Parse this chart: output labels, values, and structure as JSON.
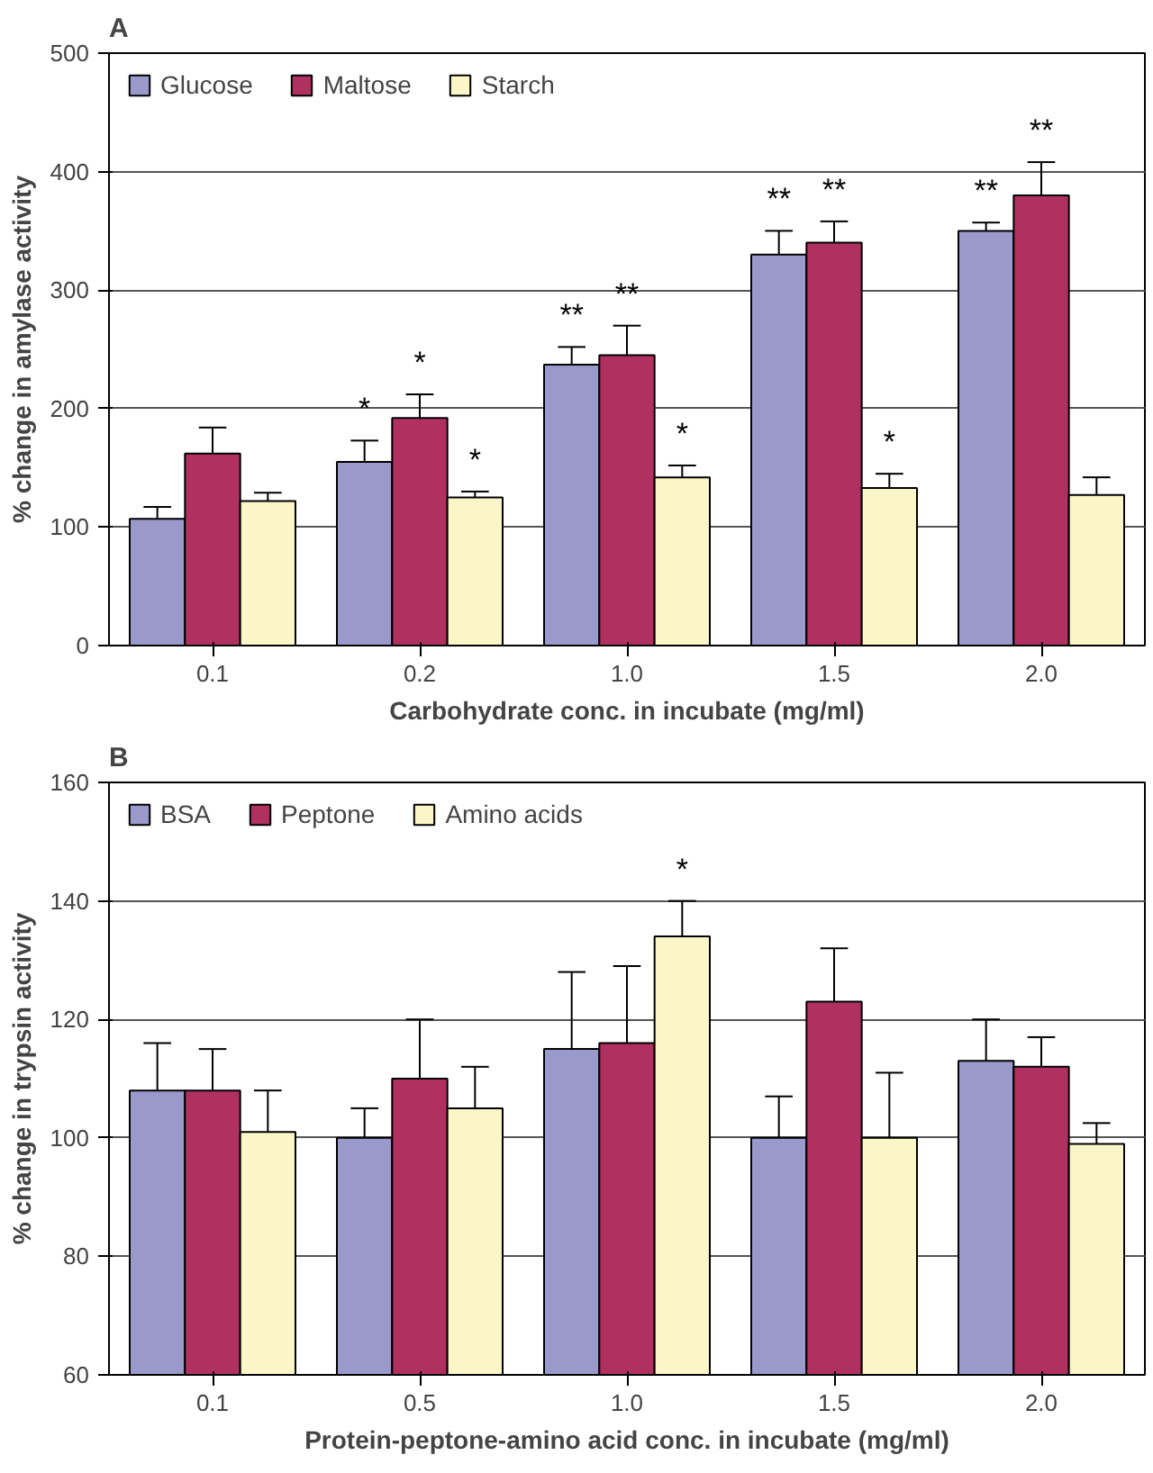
{
  "chart_data": [
    {
      "type": "bar",
      "title": "A",
      "xlabel": "Carbohydrate conc. in incubate (mg/ml)",
      "ylabel": "% change in amylase activity",
      "categories": [
        "0.1",
        "0.2",
        "1.0",
        "1.5",
        "2.0"
      ],
      "series": [
        {
          "name": "Glucose",
          "color": "#9999cc",
          "values": [
            107,
            155,
            237,
            330,
            350
          ],
          "errors": [
            [
              107,
              117
            ],
            [
              155,
              173
            ],
            [
              237,
              252
            ],
            [
              330,
              350
            ],
            [
              350,
              357
            ]
          ],
          "value_labels": [
            null,
            "*",
            "**",
            "**",
            "**"
          ]
        },
        {
          "name": "Maltose",
          "color": "#b03060",
          "values": [
            162,
            192,
            245,
            340,
            380
          ],
          "errors": [
            [
              162,
              184
            ],
            [
              192,
              212
            ],
            [
              245,
              270
            ],
            [
              340,
              358
            ],
            [
              380,
              408
            ]
          ],
          "value_labels": [
            null,
            "*",
            "**",
            "**",
            "**"
          ]
        },
        {
          "name": "Starch",
          "color": "#fbf6c8",
          "values": [
            122,
            125,
            142,
            133,
            127
          ],
          "errors": [
            [
              122,
              129
            ],
            [
              125,
              130
            ],
            [
              142,
              152
            ],
            [
              133,
              145
            ],
            [
              127,
              142
            ]
          ],
          "value_labels": [
            null,
            "*",
            "*",
            "*",
            null
          ]
        }
      ],
      "ylim": [
        0,
        500
      ],
      "yticks": [
        0,
        100,
        200,
        300,
        400,
        500
      ],
      "grid": "y",
      "legend": "top left"
    },
    {
      "type": "bar",
      "title": "B",
      "xlabel": "Protein-peptone-amino acid conc. in incubate (mg/ml)",
      "ylabel": "% change in trypsin activity",
      "categories": [
        "0.1",
        "0.5",
        "1.0",
        "1.5",
        "2.0"
      ],
      "series": [
        {
          "name": "BSA",
          "color": "#9999cc",
          "values": [
            108,
            100,
            115,
            100,
            113
          ],
          "errors": [
            [
              108,
              116
            ],
            [
              100,
              105
            ],
            [
              115,
              128
            ],
            [
              100,
              107
            ],
            [
              113,
              120
            ]
          ]
        },
        {
          "name": "Peptone",
          "color": "#b03060",
          "values": [
            108,
            110,
            116,
            123,
            112
          ],
          "errors": [
            [
              108,
              115
            ],
            [
              110,
              120
            ],
            [
              116,
              129
            ],
            [
              123,
              132
            ],
            [
              112,
              117
            ]
          ]
        },
        {
          "name": "Amino acids",
          "color": "#fbf6c8",
          "values": [
            101,
            105,
            134,
            100,
            99
          ],
          "errors": [
            [
              101,
              108
            ],
            [
              105,
              112
            ],
            [
              134,
              140
            ],
            [
              100,
              111
            ],
            [
              99,
              102.5
            ]
          ],
          "value_labels": [
            null,
            null,
            "*",
            null,
            null
          ]
        }
      ],
      "ylim": [
        60,
        160
      ],
      "yticks": [
        60,
        80,
        100,
        120,
        140,
        160
      ],
      "grid": "y",
      "legend": "top left"
    }
  ]
}
